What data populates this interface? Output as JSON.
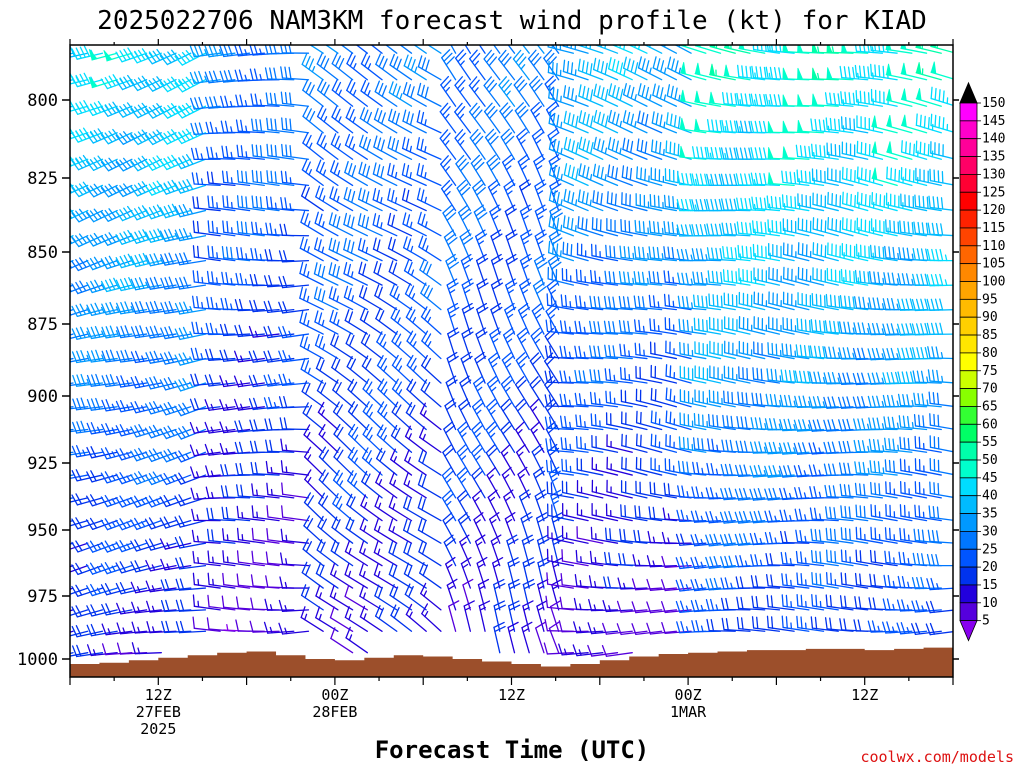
{
  "chart_data": {
    "type": "wind-barb-time-height",
    "title": "2025022706 NAM3KM forecast wind profile (kt) for KIAD",
    "xlabel": "Forecast Time (UTC)",
    "credit": "coolwx.com/models",
    "y_axis": {
      "unit": "mb",
      "range": [
        1012,
        780
      ],
      "ticks": [
        "800",
        "825",
        "850",
        "875",
        "900",
        "925",
        "950",
        "975",
        "1000"
      ],
      "tick_values": [
        800,
        825,
        850,
        875,
        900,
        925,
        950,
        975,
        1000
      ]
    },
    "x_axis": {
      "range_hours": [
        0,
        60
      ],
      "ticks": [
        {
          "hour": 6,
          "lines": [
            "12Z",
            "27FEB",
            "2025"
          ]
        },
        {
          "hour": 18,
          "lines": [
            "00Z",
            "28FEB"
          ]
        },
        {
          "hour": 30,
          "lines": [
            "12Z"
          ]
        },
        {
          "hour": 42,
          "lines": [
            "00Z",
            "1MAR"
          ]
        },
        {
          "hour": 54,
          "lines": [
            "12Z"
          ]
        }
      ]
    },
    "colorbar": {
      "labels": [
        "150",
        "145",
        "140",
        "135",
        "130",
        "125",
        "120",
        "115",
        "110",
        "105",
        "100",
        "95",
        "90",
        "85",
        "80",
        "75",
        "70",
        "65",
        "60",
        "55",
        "50",
        "45",
        "40",
        "35",
        "30",
        "25",
        "20",
        "15",
        "10",
        "5"
      ],
      "colors": [
        "#ff00ff",
        "#ff00cc",
        "#ff0099",
        "#ff0066",
        "#ff0033",
        "#ff0000",
        "#ff2200",
        "#ff4400",
        "#ff6600",
        "#ff8800",
        "#ffa500",
        "#ffbb00",
        "#ffd000",
        "#ffe600",
        "#ffff00",
        "#ccff00",
        "#88ff00",
        "#33ff33",
        "#00ff66",
        "#00ffaa",
        "#00ffcc",
        "#00ddff",
        "#00bbff",
        "#0099ff",
        "#0077ff",
        "#0055ff",
        "#0033ee",
        "#2200dd",
        "#5500dd",
        "#8800ee"
      ]
    },
    "surface_pressure": {
      "hours": [
        0,
        2,
        4,
        6,
        8,
        10,
        12,
        14,
        16,
        18,
        20,
        22,
        24,
        26,
        28,
        30,
        32,
        34,
        36,
        38,
        40,
        42,
        44,
        46,
        48,
        50,
        52,
        54,
        56,
        58,
        60
      ],
      "mb": [
        1002,
        1001.5,
        1000.5,
        999.5,
        998.5,
        997.5,
        997,
        998.5,
        1000,
        1000.5,
        999.5,
        998.5,
        999,
        1000,
        1001,
        1002,
        1003,
        1002,
        1000.5,
        999,
        998,
        997.5,
        997,
        996.5,
        996.5,
        996,
        996,
        996.5,
        996,
        995.5,
        996
      ]
    },
    "wind_field": {
      "speed_regimes": [
        {
          "h_start": 0,
          "h_end": 9,
          "upper_kt": 45,
          "lower_kt": 15,
          "dir_upper": 250,
          "dir_lower": 260
        },
        {
          "h_start": 9,
          "h_end": 16,
          "upper_kt": 30,
          "lower_kt": 10,
          "dir_upper": 270,
          "dir_lower": 270
        },
        {
          "h_start": 16,
          "h_end": 25,
          "upper_kt": 30,
          "lower_kt": 15,
          "dir_upper": 300,
          "dir_lower": 310
        },
        {
          "h_start": 25,
          "h_end": 33,
          "upper_kt": 30,
          "lower_kt": 15,
          "dir_upper": 330,
          "dir_lower": 340
        },
        {
          "h_start": 33,
          "h_end": 42,
          "upper_kt": 40,
          "lower_kt": 10,
          "dir_upper": 290,
          "dir_lower": 270
        },
        {
          "h_start": 42,
          "h_end": 60,
          "upper_kt": 50,
          "lower_kt": 20,
          "dir_upper": 280,
          "dir_lower": 270
        }
      ],
      "ground_color": "#9c4f2b"
    }
  }
}
